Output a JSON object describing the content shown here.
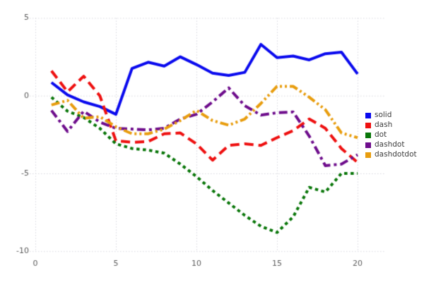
{
  "chart_data": {
    "type": "line",
    "title": "",
    "xlabel": "",
    "ylabel": "",
    "x": [
      1,
      2,
      3,
      4,
      5,
      6,
      7,
      8,
      9,
      10,
      11,
      12,
      13,
      14,
      15,
      16,
      17,
      18,
      19,
      20
    ],
    "xticks": [
      0,
      5,
      10,
      15,
      20
    ],
    "yticks": [
      5,
      0,
      -5,
      -10
    ],
    "xlim": [
      0,
      21
    ],
    "ylim": [
      -10.5,
      5.5
    ],
    "grid": "dotted",
    "legend_position": "right",
    "series": [
      {
        "name": "solid",
        "color": "#0a0aee",
        "dash": "solid",
        "values": [
          0.85,
          0.05,
          -0.4,
          -0.7,
          -1.2,
          1.75,
          2.15,
          1.9,
          2.5,
          2.0,
          1.45,
          1.3,
          1.5,
          3.3,
          2.45,
          2.55,
          2.3,
          2.7,
          2.8,
          1.4
        ]
      },
      {
        "name": "dash",
        "color": "#ee1010",
        "dash": "dash",
        "values": [
          1.6,
          0.25,
          1.25,
          0.0,
          -2.9,
          -3.0,
          -2.95,
          -2.45,
          -2.4,
          -3.1,
          -4.15,
          -3.2,
          -3.1,
          -3.2,
          -2.7,
          -2.25,
          -1.5,
          -2.1,
          -3.4,
          -4.3
        ]
      },
      {
        "name": "dot",
        "color": "#097609",
        "dash": "dot",
        "values": [
          -0.1,
          -1.0,
          -1.4,
          -2.1,
          -3.1,
          -3.4,
          -3.5,
          -3.7,
          -4.4,
          -5.2,
          -6.1,
          -6.9,
          -7.7,
          -8.4,
          -8.8,
          -7.8,
          -5.9,
          -6.2,
          -5.0,
          -5.0
        ]
      },
      {
        "name": "dashdot",
        "color": "#6e0d8c",
        "dash": "dashdot",
        "values": [
          -0.95,
          -2.3,
          -1.0,
          -1.7,
          -2.1,
          -2.15,
          -2.2,
          -2.1,
          -1.5,
          -1.2,
          -0.4,
          0.5,
          -0.65,
          -1.25,
          -1.1,
          -1.05,
          -2.6,
          -4.5,
          -4.4,
          -3.8
        ]
      },
      {
        "name": "dashdotdot",
        "color": "#e89d0e",
        "dash": "dashdotdot",
        "values": [
          -0.6,
          -0.3,
          -1.45,
          -1.35,
          -2.0,
          -2.45,
          -2.45,
          -2.15,
          -1.6,
          -0.95,
          -1.6,
          -1.9,
          -1.5,
          -0.5,
          0.6,
          0.6,
          -0.1,
          -0.9,
          -2.4,
          -2.7
        ]
      }
    ],
    "tick_label_color": "#5a5a5a",
    "grid_color": "#d7d7de",
    "legend_labels": [
      "solid",
      "dash",
      "dot",
      "dashdot",
      "dashdotdot"
    ]
  }
}
